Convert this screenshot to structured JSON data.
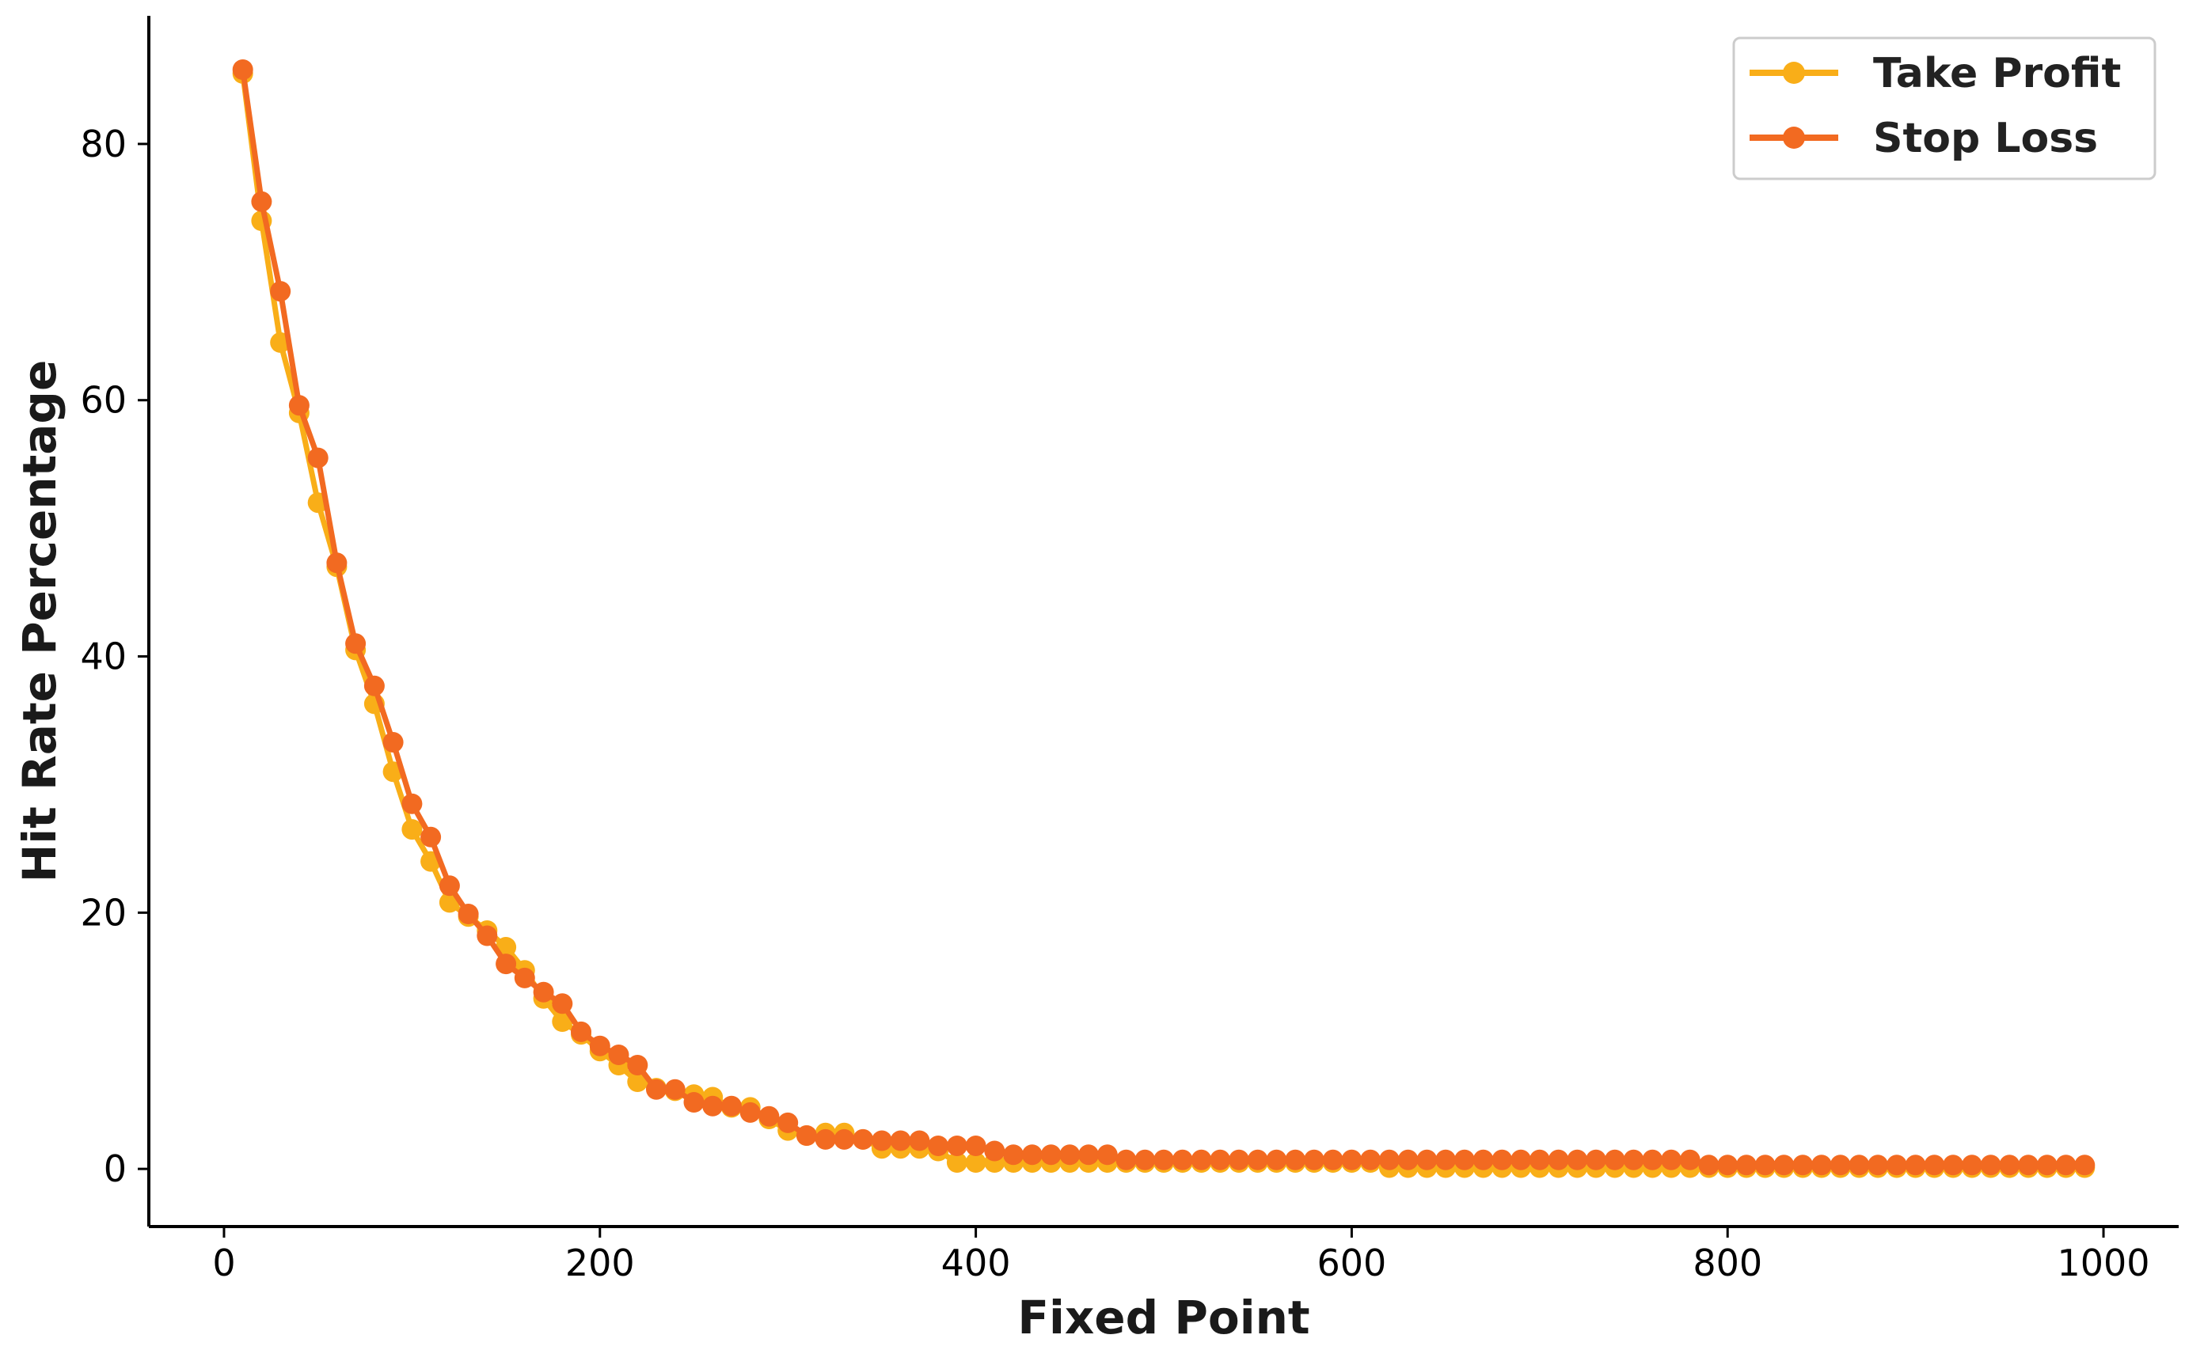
{
  "chart_data": {
    "type": "line",
    "title": "",
    "xlabel": "Fixed Point",
    "ylabel": "Hit Rate Percentage",
    "xlim": [
      -40,
      1040
    ],
    "ylim": [
      -4.5,
      90
    ],
    "xticks": [
      0,
      200,
      400,
      600,
      800,
      1000
    ],
    "yticks": [
      0,
      20,
      40,
      60,
      80
    ],
    "grid": false,
    "legend": "top-right",
    "x": [
      10,
      20,
      30,
      40,
      50,
      60,
      70,
      80,
      90,
      100,
      110,
      120,
      130,
      140,
      150,
      160,
      170,
      180,
      190,
      200,
      210,
      220,
      230,
      240,
      250,
      260,
      270,
      280,
      290,
      300,
      310,
      320,
      330,
      340,
      350,
      360,
      370,
      380,
      390,
      400,
      410,
      420,
      430,
      440,
      450,
      460,
      470,
      480,
      490,
      500,
      510,
      520,
      530,
      540,
      550,
      560,
      570,
      580,
      590,
      600,
      610,
      620,
      630,
      640,
      650,
      660,
      670,
      680,
      690,
      700,
      710,
      720,
      730,
      740,
      750,
      760,
      770,
      780,
      790,
      800,
      810,
      820,
      830,
      840,
      850,
      860,
      870,
      880,
      890,
      900,
      910,
      920,
      930,
      940,
      950,
      960,
      970,
      980,
      990
    ],
    "series": [
      {
        "name": "Take Profit",
        "color": "#F9AE18",
        "values": [
          85.5,
          74,
          64.5,
          59,
          52,
          47,
          40.5,
          36.3,
          31,
          26.5,
          24,
          20.8,
          19.7,
          18.6,
          17.3,
          15.5,
          13.3,
          11.5,
          10.5,
          9.2,
          8.1,
          6.8,
          6.3,
          6.1,
          5.8,
          5.6,
          4.8,
          4.8,
          3.9,
          3,
          2.6,
          2.8,
          2.8,
          2.3,
          1.6,
          1.6,
          1.6,
          1.4,
          0.5,
          0.5,
          0.5,
          0.5,
          0.5,
          0.5,
          0.5,
          0.5,
          0.5,
          0.5,
          0.5,
          0.5,
          0.5,
          0.5,
          0.5,
          0.5,
          0.5,
          0.5,
          0.5,
          0.5,
          0.5,
          0.5,
          0.5,
          0.1,
          0.1,
          0.1,
          0.1,
          0.1,
          0.1,
          0.1,
          0.1,
          0.1,
          0.1,
          0.1,
          0.1,
          0.1,
          0.1,
          0.1,
          0.1,
          0.1,
          0.1,
          0.1,
          0.1,
          0.1,
          0.1,
          0.1,
          0.1,
          0.1,
          0.1,
          0.1,
          0.1,
          0.1,
          0.1,
          0.1,
          0.1,
          0.1,
          0.1,
          0.1,
          0.1,
          0.1,
          0.1
        ]
      },
      {
        "name": "Stop Loss",
        "color": "#F26A21",
        "values": [
          85.8,
          75.5,
          68.5,
          59.6,
          55.5,
          47.3,
          41,
          37.7,
          33.3,
          28.5,
          25.9,
          22.1,
          19.9,
          18.2,
          16,
          14.9,
          13.8,
          12.9,
          10.7,
          9.6,
          8.9,
          8.1,
          6.2,
          6.2,
          5.2,
          4.9,
          4.9,
          4.4,
          4.1,
          3.6,
          2.6,
          2.3,
          2.3,
          2.3,
          2.2,
          2.2,
          2.2,
          1.8,
          1.8,
          1.8,
          1.4,
          1.1,
          1.1,
          1.1,
          1.1,
          1.1,
          1.1,
          0.7,
          0.7,
          0.7,
          0.7,
          0.7,
          0.7,
          0.7,
          0.7,
          0.7,
          0.7,
          0.7,
          0.7,
          0.7,
          0.7,
          0.7,
          0.7,
          0.7,
          0.7,
          0.7,
          0.7,
          0.7,
          0.7,
          0.7,
          0.7,
          0.7,
          0.7,
          0.7,
          0.7,
          0.7,
          0.7,
          0.7,
          0.3,
          0.3,
          0.3,
          0.3,
          0.3,
          0.3,
          0.3,
          0.3,
          0.3,
          0.3,
          0.3,
          0.3,
          0.3,
          0.3,
          0.3,
          0.3,
          0.3,
          0.3,
          0.3,
          0.3,
          0.3
        ]
      }
    ]
  }
}
